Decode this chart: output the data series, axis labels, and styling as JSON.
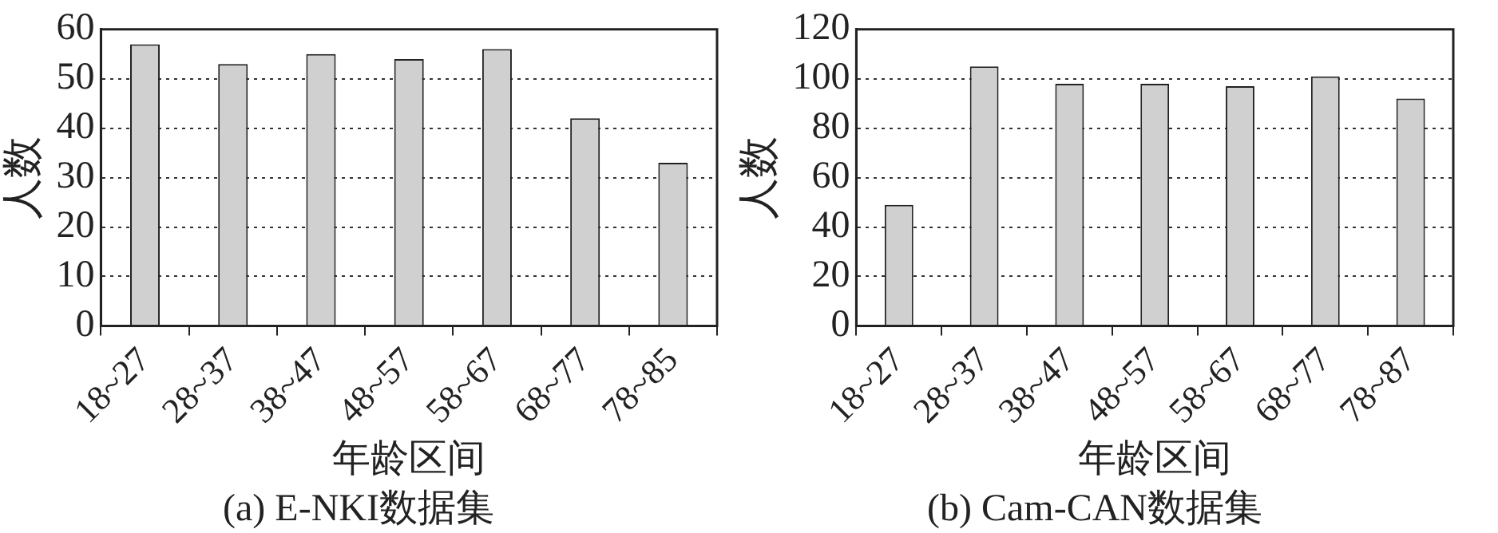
{
  "chart_data": [
    {
      "type": "bar",
      "title": "(a) E-NKI数据集",
      "xlabel": "年龄区间",
      "ylabel": "人数",
      "categories": [
        "18~27",
        "28~37",
        "38~47",
        "48~57",
        "58~67",
        "68~77",
        "78~85"
      ],
      "values": [
        57,
        53,
        55,
        54,
        56,
        42,
        33
      ],
      "color": "#d0d0d0",
      "ylim": [
        0,
        60
      ],
      "yticks": [
        0,
        10,
        20,
        30,
        40,
        50,
        60
      ],
      "grid": "y"
    },
    {
      "type": "bar",
      "title": "(b) Cam-CAN数据集",
      "xlabel": "年龄区间",
      "ylabel": "人数",
      "categories": [
        "18~27",
        "28~37",
        "38~47",
        "48~57",
        "58~67",
        "68~77",
        "78~87"
      ],
      "values": [
        49,
        105,
        98,
        98,
        97,
        101,
        92
      ],
      "color": "#d0d0d0",
      "ylim": [
        0,
        120
      ],
      "yticks": [
        0,
        20,
        40,
        60,
        80,
        100,
        120
      ],
      "grid": "y"
    }
  ]
}
